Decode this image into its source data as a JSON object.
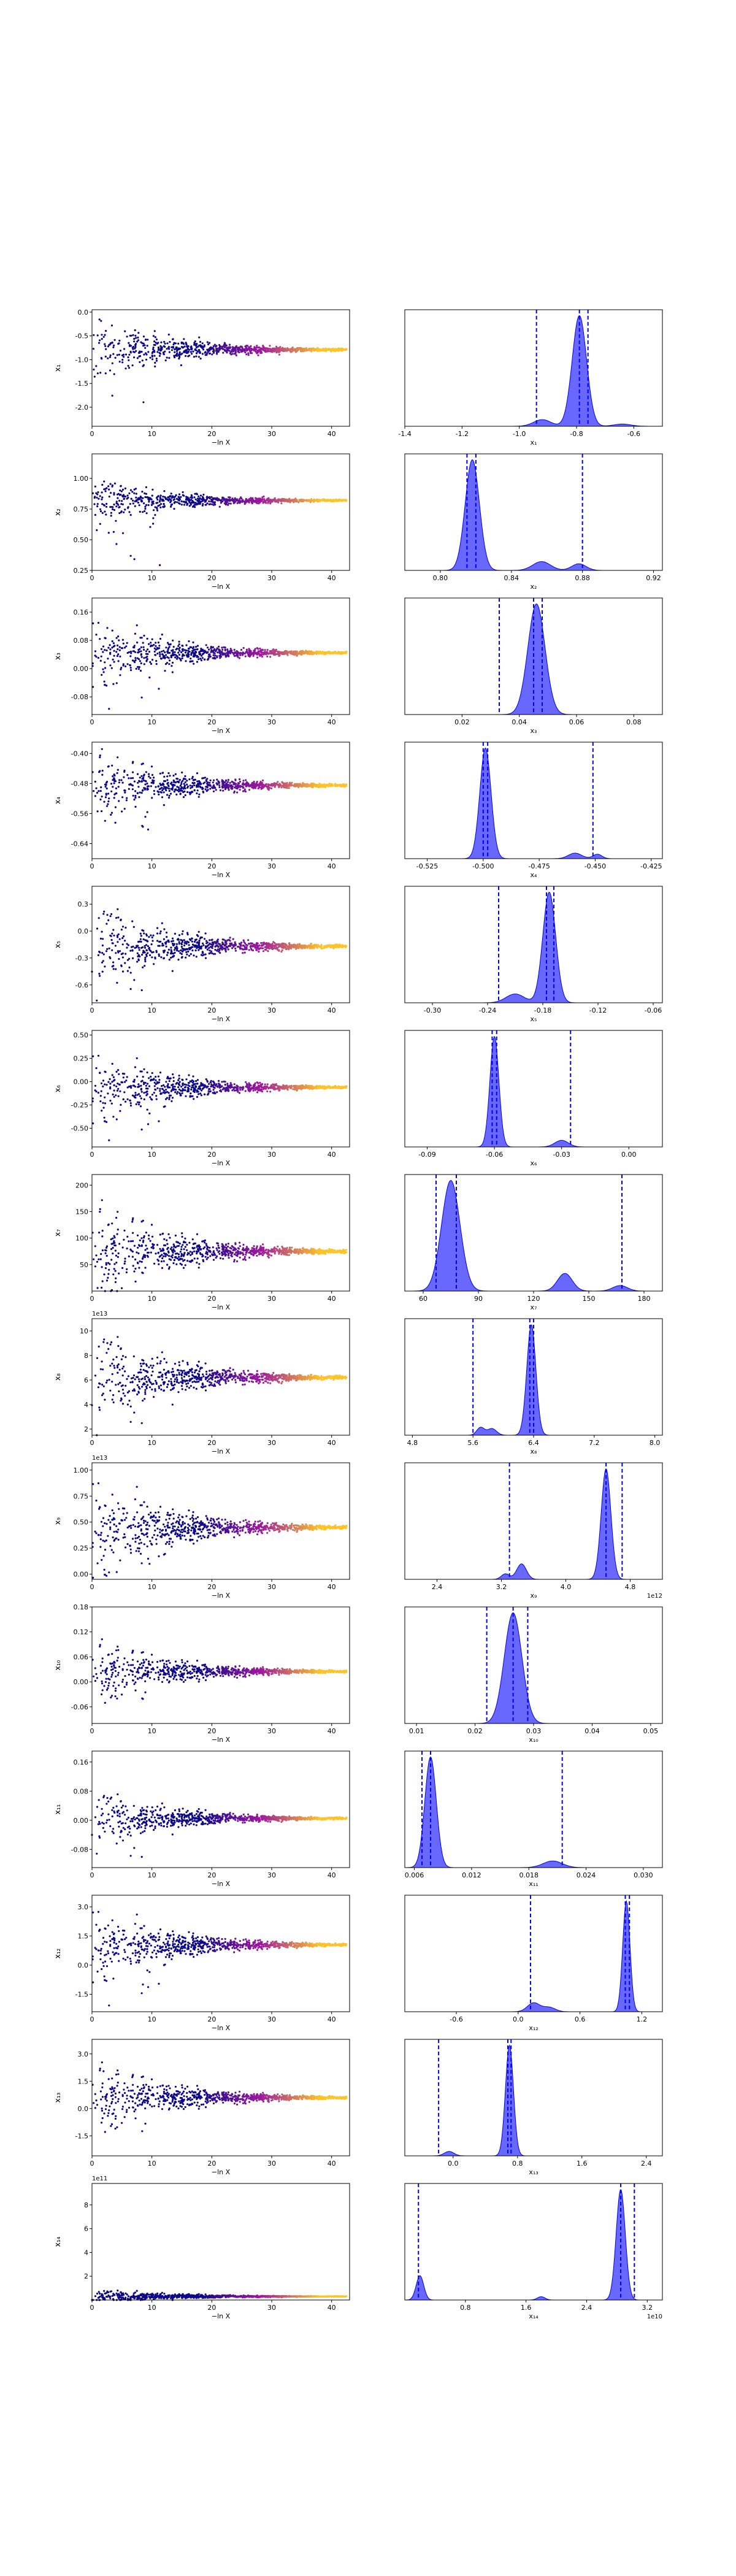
{
  "colors": {
    "scatter_cold": "#0d0887",
    "scatter_mid": "#9c179e",
    "scatter_hot": "#fdc328",
    "density_fill": "#4d4dff",
    "density_line": "#0000ee",
    "quantile_line": "#0000ff",
    "median_line": "#000000",
    "axis": "#000000"
  },
  "chart_data": {
    "type": "scatter",
    "description_layout": "14 rows; each row = trace scatter of parameter vs -ln X (left) and marginal posterior density (right)",
    "trace_xlabel": "−ln X",
    "trace_xlim": [
      0,
      43
    ],
    "trace_xticks": [
      0,
      10,
      20,
      30,
      40
    ],
    "panels": [
      {
        "ylabel": "x₁",
        "xlabel": "x₁",
        "yticks": [
          "0.0",
          "-0.5",
          "-1.0",
          "-1.5",
          "-2.0"
        ],
        "ytick_vals": [
          0,
          -0.5,
          -1,
          -1.5,
          -2
        ],
        "ylim": [
          -2.4,
          0.05
        ],
        "spread": 0.35,
        "center": -0.79,
        "tail": -2.3,
        "density": {
          "xlim": [
            -1.4,
            -0.5
          ],
          "xticks": [
            "-1.4",
            "-1.2",
            "-1.0",
            "-0.8",
            "-0.6"
          ],
          "xtick_vals": [
            -1.4,
            -1.2,
            -1.0,
            -0.8,
            -0.6
          ],
          "multiplier": "",
          "peaks": [
            [
              -0.79,
              0.025,
              1.0
            ],
            [
              -0.92,
              0.03,
              0.06
            ],
            [
              -0.64,
              0.03,
              0.02
            ]
          ],
          "quantiles": [
            -0.94,
            -0.79,
            -0.76
          ]
        }
      },
      {
        "ylabel": "x₂",
        "xlabel": "x₂",
        "yticks": [
          "0.25",
          "0.50",
          "0.75",
          "1.00"
        ],
        "ytick_vals": [
          0.25,
          0.5,
          0.75,
          1.0
        ],
        "ylim": [
          0.25,
          1.2
        ],
        "spread": 0.1,
        "center": 0.82,
        "tail": 0.27,
        "density": {
          "xlim": [
            0.78,
            0.925
          ],
          "xticks": [
            "0.80",
            "0.84",
            "0.88",
            "0.92"
          ],
          "xtick_vals": [
            0.8,
            0.84,
            0.88,
            0.92
          ],
          "multiplier": "",
          "peaks": [
            [
              0.818,
              0.004,
              1.0
            ],
            [
              0.857,
              0.005,
              0.08
            ],
            [
              0.878,
              0.004,
              0.06
            ]
          ],
          "quantiles": [
            0.815,
            0.82,
            0.88
          ]
        }
      },
      {
        "ylabel": "x₃",
        "xlabel": "x₃",
        "yticks": [
          "-0.08",
          "0.00",
          "0.08",
          "0.16"
        ],
        "ytick_vals": [
          -0.08,
          0,
          0.08,
          0.16
        ],
        "ylim": [
          -0.13,
          0.2
        ],
        "spread": 0.05,
        "center": 0.045,
        "tail": -0.12,
        "density": {
          "xlim": [
            0.0,
            0.09
          ],
          "xticks": [
            "0.02",
            "0.04",
            "0.06",
            "0.08"
          ],
          "xtick_vals": [
            0.02,
            0.04,
            0.06,
            0.08
          ],
          "multiplier": "",
          "peaks": [
            [
              0.046,
              0.003,
              1.0
            ]
          ],
          "quantiles": [
            0.033,
            0.045,
            0.048
          ]
        }
      },
      {
        "ylabel": "x₄",
        "xlabel": "x₄",
        "yticks": [
          "-0.40",
          "-0.48",
          "-0.56",
          "-0.64"
        ],
        "ytick_vals": [
          -0.4,
          -0.48,
          -0.56,
          -0.64
        ],
        "ylim": [
          -0.68,
          -0.37
        ],
        "spread": 0.05,
        "center": -0.485,
        "tail": -0.66,
        "density": {
          "xlim": [
            -0.535,
            -0.42
          ],
          "xticks": [
            "-0.525",
            "-0.500",
            "-0.475",
            "-0.450",
            "-0.425"
          ],
          "xtick_vals": [
            -0.525,
            -0.5,
            -0.475,
            -0.45,
            -0.425
          ],
          "multiplier": "",
          "peaks": [
            [
              -0.499,
              0.0025,
              1.0
            ],
            [
              -0.459,
              0.003,
              0.05
            ],
            [
              -0.449,
              0.002,
              0.04
            ]
          ],
          "quantiles": [
            -0.5,
            -0.498,
            -0.451
          ]
        }
      },
      {
        "ylabel": "x₅",
        "xlabel": "x₅",
        "yticks": [
          "-0.6",
          "-0.3",
          "0.0",
          "0.3"
        ],
        "ytick_vals": [
          -0.6,
          -0.3,
          0,
          0.3
        ],
        "ylim": [
          -0.8,
          0.5
        ],
        "spread": 0.25,
        "center": -0.17,
        "tail": -0.75,
        "density": {
          "xlim": [
            -0.33,
            -0.05
          ],
          "xticks": [
            "-0.30",
            "-0.24",
            "-0.18",
            "-0.12",
            "-0.06"
          ],
          "xtick_vals": [
            -0.3,
            -0.24,
            -0.18,
            -0.12,
            -0.06
          ],
          "multiplier": "",
          "peaks": [
            [
              -0.173,
              0.007,
              1.0
            ],
            [
              -0.21,
              0.01,
              0.08
            ]
          ],
          "quantiles": [
            -0.228,
            -0.176,
            -0.168
          ]
        }
      },
      {
        "ylabel": "x₆",
        "xlabel": "x₆",
        "yticks": [
          "-0.50",
          "-0.25",
          "0.00",
          "0.25",
          "0.50"
        ],
        "ytick_vals": [
          -0.5,
          -0.25,
          0,
          0.25,
          0.5
        ],
        "ylim": [
          -0.7,
          0.55
        ],
        "spread": 0.2,
        "center": -0.06,
        "tail": -0.65,
        "density": {
          "xlim": [
            -0.1,
            0.015
          ],
          "xticks": [
            "-0.09",
            "-0.06",
            "-0.03",
            "0.00"
          ],
          "xtick_vals": [
            -0.09,
            -0.06,
            -0.03,
            0
          ],
          "multiplier": "",
          "peaks": [
            [
              -0.06,
              0.002,
              1.0
            ],
            [
              -0.03,
              0.003,
              0.06
            ]
          ],
          "quantiles": [
            -0.061,
            -0.059,
            -0.026
          ]
        }
      },
      {
        "ylabel": "x₇",
        "xlabel": "x₇",
        "yticks": [
          "50",
          "100",
          "150",
          "200"
        ],
        "ytick_vals": [
          50,
          100,
          150,
          200
        ],
        "ylim": [
          0,
          220
        ],
        "spread": 50,
        "center": 75,
        "tail": 10,
        "density": {
          "xlim": [
            50,
            190
          ],
          "xticks": [
            "60",
            "90",
            "120",
            "150",
            "180"
          ],
          "xtick_vals": [
            60,
            90,
            120,
            150,
            180
          ],
          "multiplier": "",
          "peaks": [
            [
              75,
              5,
              1.0
            ],
            [
              137,
              4,
              0.16
            ],
            [
              167,
              4,
              0.05
            ]
          ],
          "quantiles": [
            67,
            78,
            168
          ]
        }
      },
      {
        "ylabel": "x₈",
        "xlabel": "x₈",
        "yticks": [
          "2",
          "4",
          "6",
          "8",
          "10"
        ],
        "ytick_vals": [
          2,
          4,
          6,
          8,
          10
        ],
        "ylim": [
          1.5,
          11
        ],
        "spread": 2,
        "center": 6.2,
        "tail": 1.8,
        "multiplier": "1e13",
        "density": {
          "xlim": [
            4.7,
            8.1
          ],
          "xticks": [
            "4.8",
            "5.6",
            "6.4",
            "7.2",
            "8.0"
          ],
          "xtick_vals": [
            4.8,
            5.6,
            6.4,
            7.2,
            8.0
          ],
          "multiplier": "",
          "peaks": [
            [
              6.37,
              0.06,
              1.0
            ],
            [
              5.7,
              0.05,
              0.07
            ],
            [
              5.85,
              0.06,
              0.06
            ]
          ],
          "quantiles": [
            5.6,
            6.35,
            6.4
          ]
        }
      },
      {
        "ylabel": "x₉",
        "xlabel": "x₉",
        "yticks": [
          "0.00",
          "0.25",
          "0.50",
          "0.75",
          "1.00"
        ],
        "ytick_vals": [
          0,
          0.25,
          0.5,
          0.75,
          1.0
        ],
        "ylim": [
          -0.05,
          1.07
        ],
        "spread": 0.25,
        "center": 0.45,
        "tail": 0.0,
        "multiplier": "1e13",
        "density": {
          "xlim": [
            2.0,
            5.2
          ],
          "xticks": [
            "2.4",
            "3.2",
            "4.0",
            "4.8"
          ],
          "xtick_vals": [
            2.4,
            3.2,
            4.0,
            4.8
          ],
          "multiplier": "1e12",
          "peaks": [
            [
              4.5,
              0.06,
              1.0
            ],
            [
              3.45,
              0.06,
              0.14
            ],
            [
              3.25,
              0.05,
              0.05
            ]
          ],
          "quantiles": [
            3.3,
            4.5,
            4.7
          ]
        }
      },
      {
        "ylabel": "x₁₀",
        "xlabel": "x₁₀",
        "yticks": [
          "-0.06",
          "0.00",
          "0.06",
          "0.12",
          "0.18"
        ],
        "ytick_vals": [
          -0.06,
          0,
          0.06,
          0.12,
          0.18
        ],
        "ylim": [
          -0.1,
          0.18
        ],
        "spread": 0.04,
        "center": 0.025,
        "tail": -0.08,
        "density": {
          "xlim": [
            0.008,
            0.052
          ],
          "xticks": [
            "0.01",
            "0.02",
            "0.03",
            "0.04",
            "0.05"
          ],
          "xtick_vals": [
            0.01,
            0.02,
            0.03,
            0.04,
            0.05
          ],
          "multiplier": "",
          "peaks": [
            [
              0.0265,
              0.0015,
              1.0
            ]
          ],
          "quantiles": [
            0.022,
            0.0265,
            0.029
          ]
        }
      },
      {
        "ylabel": "x₁₁",
        "xlabel": "x₁₁",
        "yticks": [
          "-0.08",
          "0.00",
          "0.08",
          "0.16"
        ],
        "ytick_vals": [
          -0.08,
          0,
          0.08,
          0.16
        ],
        "ylim": [
          -0.13,
          0.19
        ],
        "spread": 0.04,
        "center": 0.005,
        "tail": -0.12,
        "density": {
          "xlim": [
            0.005,
            0.032
          ],
          "xticks": [
            "0.006",
            "0.012",
            "0.018",
            "0.024",
            "0.030"
          ],
          "xtick_vals": [
            0.006,
            0.012,
            0.018,
            0.024,
            0.03
          ],
          "multiplier": "",
          "peaks": [
            [
              0.0077,
              0.0006,
              1.0
            ],
            [
              0.0205,
              0.001,
              0.06
            ]
          ],
          "quantiles": [
            0.0068,
            0.0077,
            0.0215
          ]
        }
      },
      {
        "ylabel": "x₁₂",
        "xlabel": "x₁₂",
        "yticks": [
          "-1.5",
          "0.0",
          "1.5",
          "3.0"
        ],
        "ytick_vals": [
          -1.5,
          0,
          1.5,
          3.0
        ],
        "ylim": [
          -2.4,
          3.6
        ],
        "spread": 1.0,
        "center": 1.05,
        "tail": -2.2,
        "density": {
          "xlim": [
            -1.1,
            1.4
          ],
          "xticks": [
            "-0.6",
            "0.0",
            "0.6",
            "1.2"
          ],
          "xtick_vals": [
            -0.6,
            0,
            0.6,
            1.2
          ],
          "multiplier": "",
          "peaks": [
            [
              1.05,
              0.035,
              1.0
            ],
            [
              0.15,
              0.06,
              0.08
            ],
            [
              0.3,
              0.06,
              0.04
            ]
          ],
          "quantiles": [
            0.12,
            1.04,
            1.08
          ]
        }
      },
      {
        "ylabel": "x₁₃",
        "xlabel": "x₁₃",
        "yticks": [
          "-1.5",
          "0.0",
          "1.5",
          "3.0"
        ],
        "ytick_vals": [
          -1.5,
          0,
          1.5,
          3.0
        ],
        "ylim": [
          -2.6,
          3.8
        ],
        "spread": 1.0,
        "center": 0.6,
        "tail": -2.4,
        "density": {
          "xlim": [
            -0.6,
            2.6
          ],
          "xticks": [
            "0.0",
            "0.8",
            "1.6",
            "2.4"
          ],
          "xtick_vals": [
            0,
            0.8,
            1.6,
            2.4
          ],
          "multiplier": "",
          "peaks": [
            [
              0.7,
              0.05,
              1.0
            ],
            [
              -0.05,
              0.06,
              0.04
            ]
          ],
          "quantiles": [
            -0.18,
            0.68,
            0.72
          ]
        }
      },
      {
        "ylabel": "x₁₄",
        "xlabel": "x₁₄",
        "yticks": [
          "2",
          "4",
          "6",
          "8"
        ],
        "ytick_vals": [
          2,
          4,
          6,
          8
        ],
        "ylim": [
          0,
          9.8
        ],
        "spread": 0.3,
        "center": 0.3,
        "tail": 0.1,
        "multiplier": "1e11",
        "density": {
          "xlim": [
            0.0,
            3.4
          ],
          "xticks": [
            "0.8",
            "1.6",
            "2.4",
            "3.2"
          ],
          "xtick_vals": [
            0.8,
            1.6,
            2.4,
            3.2
          ],
          "multiplier": "1e10",
          "peaks": [
            [
              2.85,
              0.06,
              1.0
            ],
            [
              0.2,
              0.05,
              0.22
            ],
            [
              1.8,
              0.05,
              0.03
            ]
          ],
          "quantiles": [
            0.18,
            2.85,
            3.03
          ]
        }
      }
    ]
  }
}
